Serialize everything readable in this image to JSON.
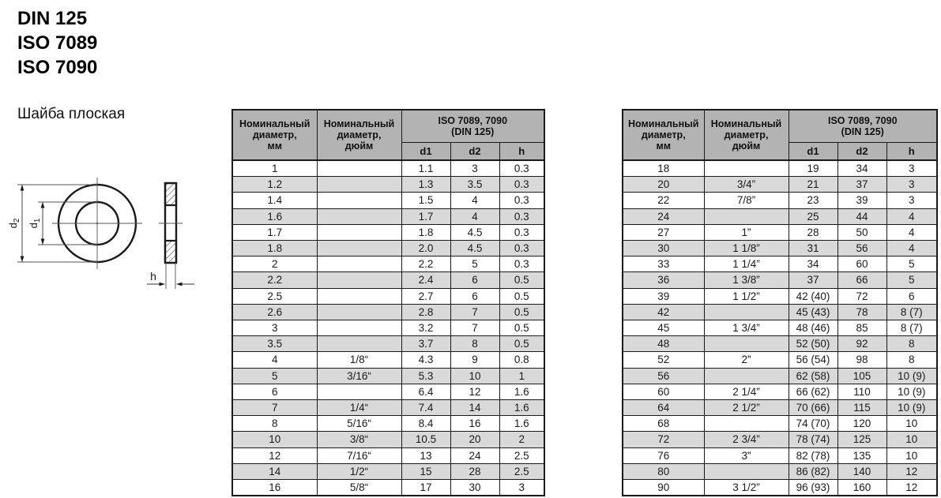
{
  "header": {
    "standards": [
      "DIN 125",
      "ISO 7089",
      "ISO 7090"
    ],
    "product_name": "Шайба плоская"
  },
  "drawing": {
    "d_letter": "d",
    "d1_sub": "1",
    "d2_sub": "2",
    "h_label": "h"
  },
  "columns": {
    "mm_lines": [
      "Номинальный",
      "диаметр,",
      "мм"
    ],
    "inch_lines": [
      "Номинальный",
      "диаметр,",
      "дюйм"
    ],
    "iso_lines": [
      "ISO 7089, 7090",
      "(DIN 125)"
    ],
    "sub": [
      "d1",
      "d2",
      "h"
    ]
  },
  "colors": {
    "header_bg": "#b3b3b3",
    "row_alt_bg": "#d9d9d9",
    "border": "#1a1a1a"
  },
  "table1": {
    "rows": [
      [
        "1",
        "",
        "1.1",
        "3",
        "0.3"
      ],
      [
        "1.2",
        "",
        "1.3",
        "3.5",
        "0.3"
      ],
      [
        "1.4",
        "",
        "1.5",
        "4",
        "0.3"
      ],
      [
        "1.6",
        "",
        "1.7",
        "4",
        "0.3"
      ],
      [
        "1.7",
        "",
        "1.8",
        "4.5",
        "0.3"
      ],
      [
        "1.8",
        "",
        "2.0",
        "4.5",
        "0.3"
      ],
      [
        "2",
        "",
        "2.2",
        "5",
        "0.3"
      ],
      [
        "2.2",
        "",
        "2.4",
        "6",
        "0.5"
      ],
      [
        "2.5",
        "",
        "2.7",
        "6",
        "0.5"
      ],
      [
        "2.6",
        "",
        "2.8",
        "7",
        "0.5"
      ],
      [
        "3",
        "",
        "3.2",
        "7",
        "0.5"
      ],
      [
        "3.5",
        "",
        "3.7",
        "8",
        "0.5"
      ],
      [
        "4",
        "1/8“",
        "4.3",
        "9",
        "0.8"
      ],
      [
        "5",
        "3/16“",
        "5.3",
        "10",
        "1"
      ],
      [
        "6",
        "",
        "6.4",
        "12",
        "1.6"
      ],
      [
        "7",
        "1/4“",
        "7.4",
        "14",
        "1.6"
      ],
      [
        "8",
        "5/16“",
        "8.4",
        "16",
        "1.6"
      ],
      [
        "10",
        "3/8“",
        "10.5",
        "20",
        "2"
      ],
      [
        "12",
        "7/16“",
        "13",
        "24",
        "2.5"
      ],
      [
        "14",
        "1/2“",
        "15",
        "28",
        "2.5"
      ],
      [
        "16",
        "5/8“",
        "17",
        "30",
        "3"
      ]
    ]
  },
  "table2": {
    "rows": [
      [
        "18",
        "",
        "19",
        "34",
        "3"
      ],
      [
        "20",
        "3/4”",
        "21",
        "37",
        "3"
      ],
      [
        "22",
        "7/8”",
        "23",
        "39",
        "3"
      ],
      [
        "24",
        "",
        "25",
        "44",
        "4"
      ],
      [
        "27",
        "1”",
        "28",
        "50",
        "4"
      ],
      [
        "30",
        "1 1/8”",
        "31",
        "56",
        "4"
      ],
      [
        "33",
        "1 1/4”",
        "34",
        "60",
        "5"
      ],
      [
        "36",
        "1 3/8”",
        "37",
        "66",
        "5"
      ],
      [
        "39",
        "1 1/2”",
        "42 (40)",
        "72",
        "6"
      ],
      [
        "42",
        "",
        "45 (43)",
        "78",
        "8 (7)"
      ],
      [
        "45",
        "1 3/4”",
        "48 (46)",
        "85",
        "8 (7)"
      ],
      [
        "48",
        "",
        "52 (50)",
        "92",
        "8"
      ],
      [
        "52",
        "2”",
        "56 (54)",
        "98",
        "8"
      ],
      [
        "56",
        "",
        "62 (58)",
        "105",
        "10 (9)"
      ],
      [
        "60",
        "2 1/4”",
        "66 (62)",
        "110",
        "10 (9)"
      ],
      [
        "64",
        "2 1/2”",
        "70 (66)",
        "115",
        "10 (9)"
      ],
      [
        "68",
        "",
        "74 (70)",
        "120",
        "10"
      ],
      [
        "72",
        "2 3/4”",
        "78 (74)",
        "125",
        "10"
      ],
      [
        "76",
        "3”",
        "82 (78)",
        "135",
        "10"
      ],
      [
        "80",
        "",
        "86 (82)",
        "140",
        "12"
      ],
      [
        "90",
        "3 1/2”",
        "96 (93)",
        "160",
        "12"
      ]
    ]
  }
}
